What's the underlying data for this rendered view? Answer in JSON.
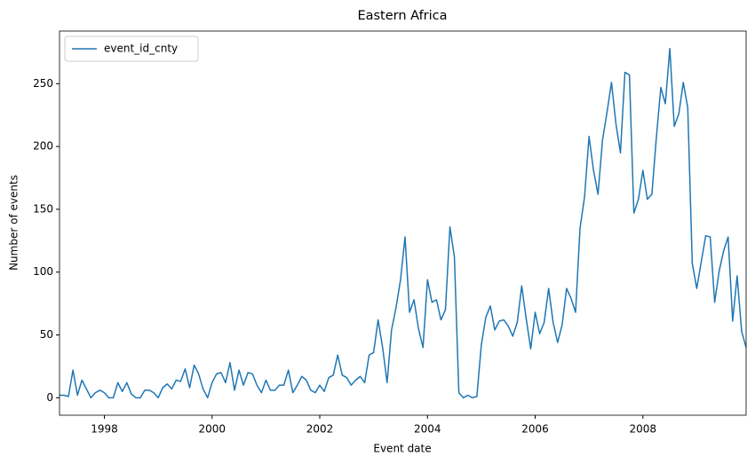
{
  "chart_data": {
    "type": "line",
    "title": "Eastern Africa",
    "x_label": "Event date",
    "y_label": "Number of events",
    "legend": "upper left",
    "grid": false,
    "xlim": [
      1997.167,
      2009.917
    ],
    "xticks": [
      1998,
      2000,
      2002,
      2004,
      2006,
      2008
    ],
    "ylim": [
      -13.9,
      291.9
    ],
    "yticks": [
      0,
      50,
      100,
      150,
      200,
      250
    ],
    "x": [
      1997.167,
      1997.25,
      1997.333,
      1997.417,
      1997.5,
      1997.583,
      1997.667,
      1997.75,
      1997.833,
      1997.917,
      1998.0,
      1998.083,
      1998.167,
      1998.25,
      1998.333,
      1998.417,
      1998.5,
      1998.583,
      1998.667,
      1998.75,
      1998.833,
      1998.917,
      1999.0,
      1999.083,
      1999.167,
      1999.25,
      1999.333,
      1999.417,
      1999.5,
      1999.583,
      1999.667,
      1999.75,
      1999.833,
      1999.917,
      2000.0,
      2000.083,
      2000.167,
      2000.25,
      2000.333,
      2000.417,
      2000.5,
      2000.583,
      2000.667,
      2000.75,
      2000.833,
      2000.917,
      2001.0,
      2001.083,
      2001.167,
      2001.25,
      2001.333,
      2001.417,
      2001.5,
      2001.583,
      2001.667,
      2001.75,
      2001.833,
      2001.917,
      2002.0,
      2002.083,
      2002.167,
      2002.25,
      2002.333,
      2002.417,
      2002.5,
      2002.583,
      2002.667,
      2002.75,
      2002.833,
      2002.917,
      2003.0,
      2003.083,
      2003.167,
      2003.25,
      2003.333,
      2003.417,
      2003.5,
      2003.583,
      2003.667,
      2003.75,
      2003.833,
      2003.917,
      2004.0,
      2004.083,
      2004.167,
      2004.25,
      2004.333,
      2004.417,
      2004.5,
      2004.583,
      2004.667,
      2004.75,
      2004.833,
      2004.917,
      2005.0,
      2005.083,
      2005.167,
      2005.25,
      2005.333,
      2005.417,
      2005.5,
      2005.583,
      2005.667,
      2005.75,
      2005.833,
      2005.917,
      2006.0,
      2006.083,
      2006.167,
      2006.25,
      2006.333,
      2006.417,
      2006.5,
      2006.583,
      2006.667,
      2006.75,
      2006.833,
      2006.917,
      2007.0,
      2007.083,
      2007.167,
      2007.25,
      2007.333,
      2007.417,
      2007.5,
      2007.583,
      2007.667,
      2007.75,
      2007.833,
      2007.917,
      2008.0,
      2008.083,
      2008.167,
      2008.25,
      2008.333,
      2008.417,
      2008.5,
      2008.583,
      2008.667,
      2008.75,
      2008.833,
      2008.917,
      2009.0,
      2009.083,
      2009.167,
      2009.25,
      2009.333,
      2009.417,
      2009.5,
      2009.583,
      2009.667,
      2009.75,
      2009.833,
      2009.917
    ],
    "series": [
      {
        "name": "event_id_cnty",
        "color": "#1f77b4",
        "values": [
          2,
          2,
          1,
          22,
          2,
          14,
          7,
          0,
          4,
          6,
          4,
          0,
          0,
          12,
          5,
          12,
          3,
          0,
          0,
          6,
          6,
          4,
          0,
          8,
          11,
          7,
          14,
          13,
          23,
          8,
          26,
          19,
          7,
          0,
          12,
          19,
          20,
          12,
          28,
          6,
          22,
          10,
          20,
          19,
          10,
          4,
          14,
          6,
          6,
          10,
          10,
          22,
          4,
          10,
          17,
          14,
          6,
          4,
          10,
          5,
          16,
          18,
          34,
          18,
          16,
          10,
          14,
          17,
          12,
          34,
          36,
          62,
          40,
          12,
          54,
          72,
          94,
          128,
          68,
          78,
          55,
          40,
          94,
          76,
          78,
          62,
          70,
          136,
          112,
          4,
          0,
          2,
          0,
          1,
          42,
          64,
          73,
          54,
          61,
          62,
          57,
          49,
          60,
          89,
          63,
          39,
          68,
          51,
          60,
          87,
          60,
          44,
          58,
          87,
          79,
          68,
          135,
          160,
          208,
          181,
          162,
          205,
          227,
          251,
          218,
          195,
          259,
          257,
          147,
          158,
          181,
          158,
          162,
          207,
          247,
          234,
          278,
          216,
          226,
          251,
          231,
          107,
          87,
          108,
          129,
          128,
          76,
          101,
          117,
          128,
          61,
          97,
          53,
          40
        ]
      }
    ]
  }
}
